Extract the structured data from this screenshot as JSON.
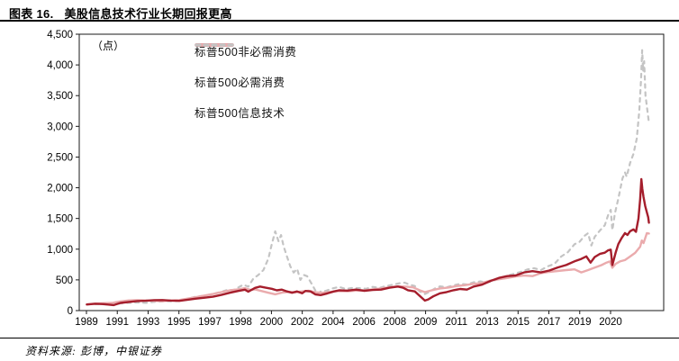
{
  "figure": {
    "number_label": "图表 16.",
    "title": "美股信息技术行业长期回报更高"
  },
  "source_note": "资料来源: 彭博，中银证券",
  "chart_data": {
    "type": "line",
    "unit_label": "（点）",
    "ylim": [
      0,
      4500
    ],
    "ytick_step": 500,
    "yticks": [
      "0",
      "500",
      "1,000",
      "1,500",
      "2,000",
      "2,500",
      "3,000",
      "3,500",
      "4,000",
      "4,500"
    ],
    "xticks": [
      "1989",
      "1991",
      "1993",
      "1995",
      "1997",
      "1998",
      "2000",
      "2002",
      "2004",
      "2006",
      "2008",
      "2009",
      "2011",
      "2013",
      "2015",
      "2017",
      "2019",
      "2020"
    ],
    "x_range": [
      1988.55,
      2023.3
    ],
    "grid": false,
    "legend_position": "top-left-inside",
    "series": [
      {
        "name": "标普500非必需消费",
        "color": "#A51E2C",
        "dash": null,
        "width": 2.4,
        "points": [
          [
            1989,
            100
          ],
          [
            1989.5,
            112
          ],
          [
            1990,
            105
          ],
          [
            1990.6,
            90
          ],
          [
            1991,
            125
          ],
          [
            1991.5,
            140
          ],
          [
            1992,
            155
          ],
          [
            1992.5,
            160
          ],
          [
            1993,
            170
          ],
          [
            1993.5,
            172
          ],
          [
            1994,
            162
          ],
          [
            1994.5,
            158
          ],
          [
            1995,
            178
          ],
          [
            1995.5,
            195
          ],
          [
            1996,
            210
          ],
          [
            1996.5,
            225
          ],
          [
            1997,
            255
          ],
          [
            1997.5,
            290
          ],
          [
            1998,
            320
          ],
          [
            1998.4,
            340
          ],
          [
            1998.6,
            308
          ],
          [
            1999,
            370
          ],
          [
            1999.3,
            392
          ],
          [
            1999.6,
            375
          ],
          [
            2000,
            355
          ],
          [
            2000.3,
            330
          ],
          [
            2000.6,
            342
          ],
          [
            2000.9,
            312
          ],
          [
            2001.2,
            290
          ],
          [
            2001.5,
            312
          ],
          [
            2001.8,
            282
          ],
          [
            2002,
            320
          ],
          [
            2002.3,
            312
          ],
          [
            2002.6,
            262
          ],
          [
            2002.9,
            252
          ],
          [
            2003.3,
            280
          ],
          [
            2003.7,
            312
          ],
          [
            2004,
            330
          ],
          [
            2004.5,
            326
          ],
          [
            2005,
            342
          ],
          [
            2005.5,
            322
          ],
          [
            2006,
            336
          ],
          [
            2006.5,
            342
          ],
          [
            2007,
            372
          ],
          [
            2007.5,
            392
          ],
          [
            2007.8,
            372
          ],
          [
            2008.1,
            332
          ],
          [
            2008.5,
            312
          ],
          [
            2008.9,
            212
          ],
          [
            2009.1,
            162
          ],
          [
            2009.3,
            182
          ],
          [
            2009.6,
            232
          ],
          [
            2010,
            282
          ],
          [
            2010.4,
            302
          ],
          [
            2010.8,
            332
          ],
          [
            2011.2,
            352
          ],
          [
            2011.6,
            342
          ],
          [
            2012,
            392
          ],
          [
            2012.5,
            422
          ],
          [
            2013,
            482
          ],
          [
            2013.5,
            532
          ],
          [
            2014,
            562
          ],
          [
            2014.5,
            572
          ],
          [
            2015,
            622
          ],
          [
            2015.5,
            642
          ],
          [
            2016,
            622
          ],
          [
            2016.5,
            652
          ],
          [
            2017,
            702
          ],
          [
            2017.5,
            742
          ],
          [
            2018,
            802
          ],
          [
            2018.4,
            842
          ],
          [
            2018.7,
            882
          ],
          [
            2018.95,
            782
          ],
          [
            2019.2,
            872
          ],
          [
            2019.5,
            922
          ],
          [
            2019.8,
            942
          ],
          [
            2020,
            982
          ],
          [
            2020.15,
            992
          ],
          [
            2020.25,
            742
          ],
          [
            2020.45,
            952
          ],
          [
            2020.6,
            1082
          ],
          [
            2020.8,
            1182
          ],
          [
            2021,
            1262
          ],
          [
            2021.15,
            1232
          ],
          [
            2021.3,
            1292
          ],
          [
            2021.5,
            1322
          ],
          [
            2021.65,
            1282
          ],
          [
            2021.8,
            1500
          ],
          [
            2021.9,
            1820
          ],
          [
            2021.97,
            2140
          ],
          [
            2022.03,
            1980
          ],
          [
            2022.1,
            1850
          ],
          [
            2022.2,
            1700
          ],
          [
            2022.3,
            1600
          ],
          [
            2022.38,
            1520
          ],
          [
            2022.42,
            1430
          ]
        ]
      },
      {
        "name": "标普500必需消费",
        "color": "#EAABAD",
        "dash": null,
        "width": 2.4,
        "points": [
          [
            1989,
            100
          ],
          [
            1989.5,
            115
          ],
          [
            1990,
            120
          ],
          [
            1990.5,
            125
          ],
          [
            1991,
            150
          ],
          [
            1991.5,
            165
          ],
          [
            1992,
            170
          ],
          [
            1992.5,
            165
          ],
          [
            1993,
            158
          ],
          [
            1993.5,
            154
          ],
          [
            1994,
            165
          ],
          [
            1994.5,
            172
          ],
          [
            1995,
            195
          ],
          [
            1995.5,
            220
          ],
          [
            1996,
            245
          ],
          [
            1996.5,
            270
          ],
          [
            1997,
            300
          ],
          [
            1997.5,
            330
          ],
          [
            1998,
            345
          ],
          [
            1998.4,
            365
          ],
          [
            1998.7,
            338
          ],
          [
            1999,
            345
          ],
          [
            1999.4,
            318
          ],
          [
            1999.8,
            290
          ],
          [
            2000.2,
            265
          ],
          [
            2000.6,
            292
          ],
          [
            2001,
            305
          ],
          [
            2001.4,
            298
          ],
          [
            2001.8,
            312
          ],
          [
            2002.2,
            322
          ],
          [
            2002.6,
            298
          ],
          [
            2003,
            290
          ],
          [
            2003.5,
            305
          ],
          [
            2004,
            318
          ],
          [
            2004.5,
            314
          ],
          [
            2005,
            325
          ],
          [
            2005.5,
            330
          ],
          [
            2006,
            345
          ],
          [
            2006.5,
            360
          ],
          [
            2007,
            380
          ],
          [
            2007.5,
            395
          ],
          [
            2008,
            390
          ],
          [
            2008.4,
            378
          ],
          [
            2008.8,
            330
          ],
          [
            2009.1,
            300
          ],
          [
            2009.5,
            330
          ],
          [
            2010,
            360
          ],
          [
            2010.5,
            375
          ],
          [
            2011,
            400
          ],
          [
            2011.5,
            415
          ],
          [
            2012,
            435
          ],
          [
            2012.5,
            450
          ],
          [
            2013,
            490
          ],
          [
            2013.5,
            510
          ],
          [
            2014,
            530
          ],
          [
            2014.5,
            555
          ],
          [
            2015,
            570
          ],
          [
            2015.5,
            562
          ],
          [
            2016,
            610
          ],
          [
            2016.5,
            630
          ],
          [
            2017,
            645
          ],
          [
            2017.5,
            660
          ],
          [
            2018,
            672
          ],
          [
            2018.4,
            622
          ],
          [
            2018.8,
            660
          ],
          [
            2019.2,
            700
          ],
          [
            2019.6,
            740
          ],
          [
            2019.9,
            782
          ],
          [
            2020.1,
            800
          ],
          [
            2020.25,
            698
          ],
          [
            2020.45,
            762
          ],
          [
            2020.7,
            800
          ],
          [
            2021,
            822
          ],
          [
            2021.3,
            880
          ],
          [
            2021.6,
            940
          ],
          [
            2021.9,
            1040
          ],
          [
            2022,
            1140
          ],
          [
            2022.1,
            1100
          ],
          [
            2022.2,
            1180
          ],
          [
            2022.3,
            1260
          ],
          [
            2022.42,
            1255
          ]
        ]
      },
      {
        "name": "标普500信息技术",
        "color": "#C4C4C4",
        "dash": "4 5",
        "width": 2.2,
        "points": [
          [
            1989,
            100
          ],
          [
            1989.5,
            108
          ],
          [
            1990,
            102
          ],
          [
            1990.6,
            92
          ],
          [
            1991,
            118
          ],
          [
            1991.5,
            128
          ],
          [
            1992,
            132
          ],
          [
            1992.5,
            126
          ],
          [
            1993,
            142
          ],
          [
            1993.5,
            150
          ],
          [
            1994,
            152
          ],
          [
            1994.5,
            158
          ],
          [
            1995,
            190
          ],
          [
            1995.5,
            228
          ],
          [
            1996,
            242
          ],
          [
            1996.5,
            272
          ],
          [
            1997,
            305
          ],
          [
            1997.4,
            340
          ],
          [
            1997.7,
            330
          ],
          [
            1998,
            375
          ],
          [
            1998.3,
            420
          ],
          [
            1998.6,
            390
          ],
          [
            1998.9,
            520
          ],
          [
            1999.2,
            580
          ],
          [
            1999.5,
            660
          ],
          [
            1999.8,
            850
          ],
          [
            2000,
            1080
          ],
          [
            2000.2,
            1290
          ],
          [
            2000.4,
            1130
          ],
          [
            2000.55,
            1230
          ],
          [
            2000.7,
            1050
          ],
          [
            2000.9,
            880
          ],
          [
            2001.1,
            720
          ],
          [
            2001.3,
            620
          ],
          [
            2001.5,
            680
          ],
          [
            2001.7,
            500
          ],
          [
            2001.9,
            580
          ],
          [
            2002.1,
            560
          ],
          [
            2002.4,
            420
          ],
          [
            2002.7,
            270
          ],
          [
            2002.9,
            310
          ],
          [
            2003.2,
            320
          ],
          [
            2003.6,
            360
          ],
          [
            2004,
            385
          ],
          [
            2004.4,
            350
          ],
          [
            2004.8,
            370
          ],
          [
            2005.2,
            365
          ],
          [
            2005.6,
            355
          ],
          [
            2006,
            385
          ],
          [
            2006.4,
            370
          ],
          [
            2006.8,
            400
          ],
          [
            2007.2,
            420
          ],
          [
            2007.6,
            445
          ],
          [
            2007.9,
            455
          ],
          [
            2008.2,
            420
          ],
          [
            2008.5,
            400
          ],
          [
            2008.8,
            310
          ],
          [
            2009.1,
            270
          ],
          [
            2009.4,
            310
          ],
          [
            2009.7,
            360
          ],
          [
            2010,
            395
          ],
          [
            2010.4,
            380
          ],
          [
            2010.8,
            410
          ],
          [
            2011.2,
            435
          ],
          [
            2011.6,
            425
          ],
          [
            2012,
            460
          ],
          [
            2012.4,
            475
          ],
          [
            2012.8,
            460
          ],
          [
            2013.2,
            490
          ],
          [
            2013.6,
            520
          ],
          [
            2014,
            570
          ],
          [
            2014.4,
            600
          ],
          [
            2014.8,
            630
          ],
          [
            2015.2,
            670
          ],
          [
            2015.6,
            690
          ],
          [
            2016,
            660
          ],
          [
            2016.4,
            720
          ],
          [
            2016.8,
            760
          ],
          [
            2017.2,
            880
          ],
          [
            2017.6,
            950
          ],
          [
            2018,
            1080
          ],
          [
            2018.3,
            1120
          ],
          [
            2018.6,
            1220
          ],
          [
            2018.8,
            1260
          ],
          [
            2019,
            1060
          ],
          [
            2019.2,
            1200
          ],
          [
            2019.5,
            1300
          ],
          [
            2019.8,
            1390
          ],
          [
            2020,
            1560
          ],
          [
            2020.15,
            1640
          ],
          [
            2020.25,
            1310
          ],
          [
            2020.4,
            1580
          ],
          [
            2020.6,
            1820
          ],
          [
            2020.7,
            1950
          ],
          [
            2020.85,
            2150
          ],
          [
            2021,
            2250
          ],
          [
            2021.1,
            2180
          ],
          [
            2021.3,
            2400
          ],
          [
            2021.5,
            2550
          ],
          [
            2021.7,
            2800
          ],
          [
            2021.85,
            3250
          ],
          [
            2021.95,
            3750
          ],
          [
            2022.02,
            4240
          ],
          [
            2022.08,
            3900
          ],
          [
            2022.14,
            4060
          ],
          [
            2022.22,
            3500
          ],
          [
            2022.32,
            3280
          ],
          [
            2022.42,
            3060
          ]
        ]
      }
    ]
  }
}
